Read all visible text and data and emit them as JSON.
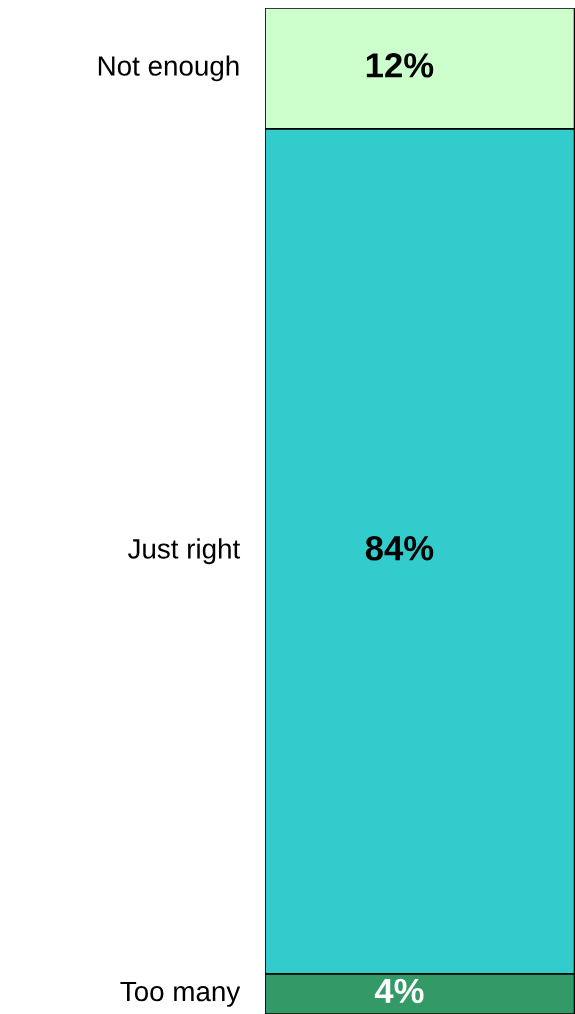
{
  "chart_data": {
    "type": "bar",
    "stacked": true,
    "categories": [
      null
    ],
    "legend": false,
    "series": [
      {
        "name": "Too many",
        "color": "#339966",
        "values": [
          4
        ],
        "value_labels": [
          "4%"
        ]
      },
      {
        "name": "Just right",
        "color": "#33cccc",
        "values": [
          84
        ],
        "value_labels": [
          "84%"
        ]
      },
      {
        "name": "Not enough",
        "color": "#ccffcc",
        "values": [
          12
        ],
        "value_labels": [
          "12%"
        ]
      }
    ]
  }
}
